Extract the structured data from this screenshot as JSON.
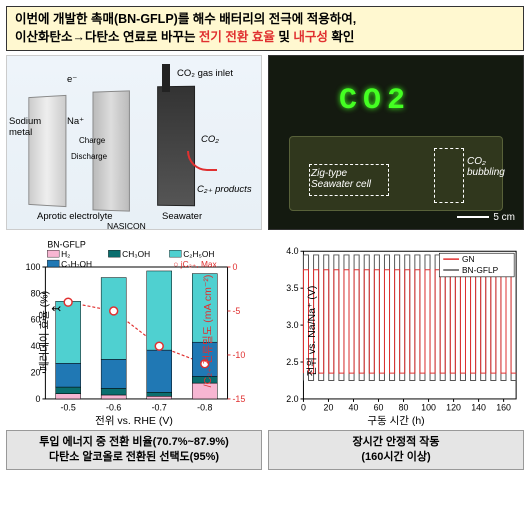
{
  "header": {
    "line1_pre": "이번에 개발한 촉매(BN-GFLP)를 해수 배터리의 전극에 적용하여,",
    "line2_pre": "이산화탄소→다탄소 연료로 바꾸는 ",
    "line2_hl": "전기 전환 효율",
    "line2_mid": " 및 ",
    "line2_hl2": "내구성",
    "line2_post": " 확인"
  },
  "diagram": {
    "co2_inlet": "CO₂ gas inlet",
    "e": "e⁻",
    "na": "Na⁺",
    "charge": "Charge",
    "discharge": "Discharge",
    "sodium": "Sodium\nmetal",
    "aprotic": "Aprotic electrolyte",
    "seawater": "Seawater",
    "nasicon": "NASICON",
    "co2": "CO₂",
    "c2": "C₂₊ products"
  },
  "photo": {
    "led": "CO2",
    "zig": "Zig-type\nSeawater cell",
    "bubbling": "CO₂ bubbling",
    "scale": "5 cm"
  },
  "fe_chart": {
    "type": "stacked-bar",
    "ylabel_left": "페러데이 효율 (%)",
    "ylabel_right": "/C₂₊ 전류밀도 (mA cm⁻²)",
    "xlabel": "전위 vs. RHE (V)",
    "title": "BN-GFLP",
    "legend": {
      "h2": "H₂",
      "ch3oh": "CH₃OH",
      "c2h5oh": "C₂H₅OH",
      "c3h7oh": "C₃H₇OH",
      "jmax": "jC₂₊, Max"
    },
    "colors": {
      "h2": "#f7b6d2",
      "ch3oh": "#0a6e6e",
      "c2h5oh": "#4fd0d0",
      "c3h7oh": "#2078b4",
      "jline": "#e03030",
      "axis": "#000000",
      "axis_r": "#e03030",
      "grid": "#dddddd"
    },
    "x_categories": [
      "-0.5",
      "-0.6",
      "-0.7",
      "-0.8"
    ],
    "stacks": [
      {
        "h2": 4,
        "ch3oh": 5,
        "c3h7oh": 18,
        "c2h5oh": 47
      },
      {
        "h2": 3,
        "ch3oh": 5,
        "c3h7oh": 22,
        "c2h5oh": 62
      },
      {
        "h2": 2,
        "ch3oh": 3,
        "c3h7oh": 32,
        "c2h5oh": 60
      },
      {
        "h2": 12,
        "ch3oh": 5,
        "c3h7oh": 26,
        "c2h5oh": 52
      }
    ],
    "jvals": [
      -4,
      -5,
      -9,
      -11
    ],
    "ylim_l": [
      0,
      100
    ],
    "ytick_l": 20,
    "ylim_r": [
      0,
      -15
    ],
    "ytick_r": -5,
    "bar_width": 0.55
  },
  "cycle_chart": {
    "type": "line",
    "ylabel": "전위 vs. Na/Na⁺ (V)",
    "xlabel": "구동 시간 (h)",
    "legend": {
      "gn": "GN",
      "bngflp": "BN-GFLP"
    },
    "colors": {
      "gn": "#e03030",
      "bngflp": "#555555",
      "axis": "#000000"
    },
    "xlim": [
      0,
      170
    ],
    "xtick": 20,
    "ylim": [
      2.0,
      4.0
    ],
    "ytick": 0.5,
    "ncycles": 21,
    "gn_lo": 2.35,
    "gn_hi": 3.75,
    "bn_lo": 2.25,
    "bn_hi": 3.95
  },
  "captions": {
    "left_l1": "투입 에너지 중 전환 비율(70.7%~87.9%)",
    "left_l2": "다탄소 알코올로 전환된 선택도(95%)",
    "right_l1": "장시간 안정적 작동",
    "right_l2": "(160시간 이상)"
  }
}
